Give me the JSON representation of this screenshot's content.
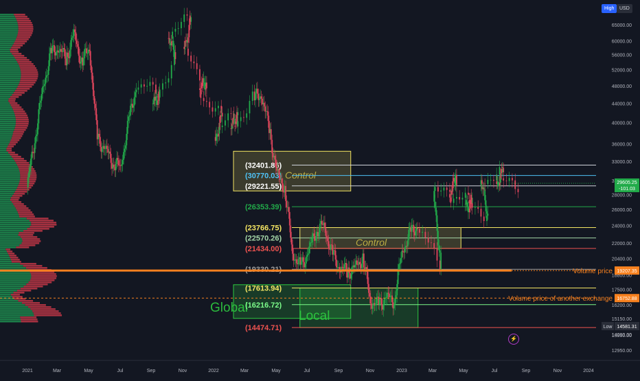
{
  "header": {
    "scale_mode": "High",
    "currency": "USD"
  },
  "icons": {
    "alert": "lightning-icon"
  },
  "colors": {
    "background": "#131722",
    "up": "#26a69a",
    "up_bright": "#22ab4a",
    "down": "#ef5350",
    "yellow": "#f5e663",
    "orange": "#f7811f",
    "green_box": "#2ecc40",
    "cyan": "#4fc3f7"
  },
  "chart_data": {
    "type": "candlestick",
    "y_axis": {
      "scale": "log",
      "range": [
        12300,
        71000
      ],
      "ticks": [
        "65000.00",
        "60000.00",
        "56000.00",
        "52000.00",
        "48000.00",
        "44000.00",
        "40000.00",
        "36000.00",
        "33000.00",
        "30000.00",
        "28000.00",
        "26000.00",
        "24000.00",
        "22000.00",
        "20400.00",
        "18800.00",
        "17500.00",
        "16200.00",
        "15150.00",
        "14000.00",
        "13950.00",
        "12950.00"
      ]
    },
    "x_axis": {
      "ticks": [
        "2021",
        "Mar",
        "May",
        "Jul",
        "Sep",
        "Nov",
        "2022",
        "Mar",
        "May",
        "Jul",
        "Sep",
        "Nov",
        "2023",
        "Mar",
        "May",
        "Jul",
        "Sep",
        "Nov",
        "2024"
      ]
    },
    "price_path": [
      [
        "2021-01",
        29000
      ],
      [
        "2021-01",
        37000
      ],
      [
        "2021-02",
        47000
      ],
      [
        "2021-02",
        56000
      ],
      [
        "2021-03",
        58000
      ],
      [
        "2021-03",
        55000
      ],
      [
        "2021-04",
        62000
      ],
      [
        "2021-04",
        54000
      ],
      [
        "2021-05",
        58000
      ],
      [
        "2021-05",
        37000
      ],
      [
        "2021-06",
        35000
      ],
      [
        "2021-06",
        33000
      ],
      [
        "2021-07",
        32000
      ],
      [
        "2021-07",
        40000
      ],
      [
        "2021-08",
        48000
      ],
      [
        "2021-09",
        47000
      ],
      [
        "2021-09",
        43000
      ],
      [
        "2021-10",
        55000
      ],
      [
        "2021-10",
        62000
      ],
      [
        "2021-11",
        67000
      ],
      [
        "2021-11",
        57000
      ],
      [
        "2021-12",
        49000
      ],
      [
        "2021-12",
        47000
      ],
      [
        "2022-01",
        41000
      ],
      [
        "2022-01",
        37000
      ],
      [
        "2022-02",
        43000
      ],
      [
        "2022-02",
        38000
      ],
      [
        "2022-03",
        45000
      ],
      [
        "2022-04",
        46000
      ],
      [
        "2022-04",
        39000
      ],
      [
        "2022-05",
        31000
      ],
      [
        "2022-05",
        29000
      ],
      [
        "2022-06",
        21000
      ],
      [
        "2022-06",
        19500
      ],
      [
        "2022-07",
        21000
      ],
      [
        "2022-07",
        23500
      ],
      [
        "2022-08",
        24000
      ],
      [
        "2022-08",
        21000
      ],
      [
        "2022-09",
        19500
      ],
      [
        "2022-09",
        19200
      ],
      [
        "2022-10",
        19400
      ],
      [
        "2022-10",
        20500
      ],
      [
        "2022-11",
        16500
      ],
      [
        "2022-11",
        16200
      ],
      [
        "2022-12",
        16800
      ],
      [
        "2022-12",
        16600
      ],
      [
        "2023-01",
        21000
      ],
      [
        "2023-01",
        23000
      ],
      [
        "2023-02",
        24000
      ],
      [
        "2023-03",
        20000
      ],
      [
        "2023-03",
        28000
      ],
      [
        "2023-04",
        30000
      ],
      [
        "2023-04",
        28000
      ],
      [
        "2023-05",
        27000
      ],
      [
        "2023-05",
        26500
      ],
      [
        "2023-06",
        25500
      ],
      [
        "2023-06",
        30000
      ],
      [
        "2023-07",
        31000
      ],
      [
        "2023-07",
        29800
      ],
      [
        "2023-08",
        29500
      ]
    ],
    "levels": [
      {
        "label": "(32401.86)",
        "price": 32401.86,
        "label_color": "#ffffff",
        "line_color": "#d1d4dc"
      },
      {
        "label": "(30770.03)",
        "price": 30770.03,
        "label_color": "#4fc3f7",
        "line_color": "#4fc3f7"
      },
      {
        "label": "(29221.55)",
        "price": 29221.55,
        "label_color": "#ffffff",
        "line_color": "#d1d4dc"
      },
      {
        "label": "(26353.39)",
        "price": 26353.39,
        "label_color": "#22ab4a",
        "line_color": "#22ab4a"
      },
      {
        "label": "(23766.75)",
        "price": 23766.75,
        "label_color": "#f5e663",
        "line_color": "#f5e663"
      },
      {
        "label": "(22570.26)",
        "price": 22570.26,
        "label_color": "#a5d6a7",
        "line_color": "#a5d6a7"
      },
      {
        "label": "(21434.00)",
        "price": 21434.0,
        "label_color": "#ef5350",
        "line_color": "#ef5350"
      },
      {
        "label": "(19330.21)",
        "price": 19330.21,
        "label_color": "#9e9e9e",
        "line_color": "#9e9e9e"
      },
      {
        "label": "(17613.94)",
        "price": 17613.94,
        "label_color": "#f5e663",
        "line_color": "#f5e663"
      },
      {
        "label": "(16216.72)",
        "price": 16216.72,
        "label_color": "#7cfc8a",
        "line_color": "#7cfc8a"
      },
      {
        "label": "(14474.71)",
        "price": 14474.71,
        "label_color": "#ef5350",
        "line_color": "#ef5350"
      }
    ],
    "zones": [
      {
        "label": "Control",
        "from": "2022-01",
        "to": "2022-10",
        "high": 34700,
        "low": 28500,
        "kind": "yellow"
      },
      {
        "label": "Control",
        "from": "2022-06",
        "to": "2023-04",
        "high": 23766.75,
        "low": 21434.0,
        "kind": "yellow"
      },
      {
        "label": "Global",
        "from": "2022-01",
        "to": "2022-10",
        "high": 17900,
        "low": 15150,
        "kind": "green"
      },
      {
        "label": "Local",
        "from": "2022-06",
        "to": "2023-02",
        "high": 17613.94,
        "low": 14474.71,
        "kind": "green"
      }
    ],
    "annotations": [
      {
        "label": "Volume price",
        "price": 19207.35,
        "badge": "19207.35",
        "style": "solid",
        "color": "#f7811f"
      },
      {
        "label": "Volume price of another exchange",
        "price": 16752.88,
        "badge": "16752.88",
        "style": "dashed",
        "color": "#f7811f"
      }
    ],
    "current_price": {
      "price": "29605.25",
      "change": "-101.03",
      "color": "#22ab4a"
    },
    "low_marker": {
      "label": "Low",
      "price": "14581.31"
    }
  }
}
